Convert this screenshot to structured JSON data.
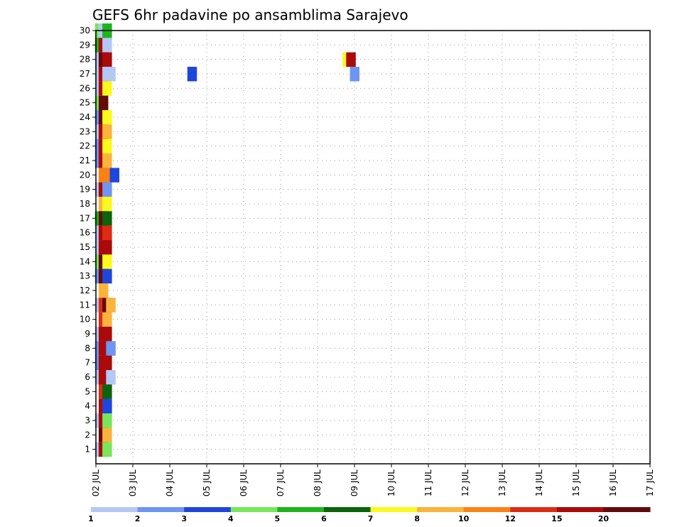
{
  "chart_data": {
    "type": "heatmap",
    "title": "GEFS 6hr padavine po ansamblima Sarajevo",
    "xlabel": "",
    "ylabel": "",
    "y_ticks": [
      1,
      2,
      3,
      4,
      5,
      6,
      7,
      8,
      9,
      10,
      11,
      12,
      13,
      14,
      15,
      16,
      17,
      18,
      19,
      20,
      21,
      22,
      23,
      24,
      25,
      26,
      27,
      28,
      29,
      30
    ],
    "y_range": [
      0,
      30
    ],
    "x_ticks": [
      "02 JUL",
      "03 JUL",
      "04 JUL",
      "05 JUL",
      "06 JUL",
      "07 JUL",
      "08 JUL",
      "09 JUL",
      "10 JUL",
      "11 JUL",
      "12 JUL",
      "13 JUL",
      "14 JUL",
      "15 JUL",
      "16 JUL",
      "17 JUL"
    ],
    "x_range_days": [
      2,
      17
    ],
    "grid": true,
    "legend": "bottom",
    "colorbar": {
      "labels": [
        "1",
        "2",
        "3",
        "4",
        "5",
        "6",
        "7",
        "8",
        "10",
        "12",
        "15",
        "20"
      ],
      "colors": [
        "#b4c8f5",
        "#6e96f0",
        "#1e46dc",
        "#78e65a",
        "#1eb41e",
        "#0a640a",
        "#fafa1e",
        "#fab43c",
        "#fa8214",
        "#dc2d14",
        "#aa0a0a",
        "#640a0a"
      ]
    },
    "cells": [
      {
        "m": 30,
        "d": [
          [
            2.1,
            3
          ],
          [
            2.2,
            0
          ],
          [
            2.3,
            4
          ]
        ]
      },
      {
        "m": 29,
        "d": [
          [
            2.1,
            4
          ],
          [
            2.2,
            10
          ],
          [
            2.3,
            0
          ]
        ]
      },
      {
        "m": 28,
        "d": [
          [
            2.1,
            0
          ],
          [
            2.2,
            11
          ],
          [
            2.3,
            10
          ],
          [
            8.8,
            6
          ],
          [
            8.9,
            10
          ]
        ]
      },
      {
        "m": 27,
        "d": [
          [
            2.1,
            0
          ],
          [
            2.2,
            10
          ],
          [
            2.3,
            0
          ],
          [
            2.4,
            0
          ],
          [
            4.6,
            2
          ],
          [
            9.0,
            1
          ]
        ]
      },
      {
        "m": 26,
        "d": [
          [
            2.1,
            0
          ],
          [
            2.2,
            10
          ],
          [
            2.3,
            6
          ]
        ]
      },
      {
        "m": 25,
        "d": [
          [
            2.1,
            3
          ],
          [
            2.2,
            11
          ]
        ]
      },
      {
        "m": 24,
        "d": [
          [
            2.1,
            1
          ],
          [
            2.2,
            11
          ],
          [
            2.3,
            6
          ]
        ]
      },
      {
        "m": 23,
        "d": [
          [
            2.1,
            0
          ],
          [
            2.2,
            10
          ],
          [
            2.3,
            7
          ]
        ]
      },
      {
        "m": 22,
        "d": [
          [
            2.1,
            1
          ],
          [
            2.2,
            10
          ],
          [
            2.3,
            6
          ]
        ]
      },
      {
        "m": 21,
        "d": [
          [
            2.1,
            1
          ],
          [
            2.2,
            10
          ],
          [
            2.3,
            7
          ]
        ]
      },
      {
        "m": 20,
        "d": [
          [
            2.2,
            8
          ],
          [
            2.3,
            8
          ],
          [
            2.5,
            2
          ]
        ]
      },
      {
        "m": 19,
        "d": [
          [
            2.1,
            0
          ],
          [
            2.2,
            10
          ],
          [
            2.3,
            1
          ]
        ]
      },
      {
        "m": 18,
        "d": [
          [
            2.2,
            7
          ],
          [
            2.3,
            6
          ]
        ]
      },
      {
        "m": 17,
        "d": [
          [
            2.1,
            4
          ],
          [
            2.2,
            11
          ],
          [
            2.3,
            5
          ]
        ]
      },
      {
        "m": 16,
        "d": [
          [
            2.1,
            0
          ],
          [
            2.2,
            10
          ],
          [
            2.3,
            9
          ]
        ]
      },
      {
        "m": 15,
        "d": [
          [
            2.1,
            0
          ],
          [
            2.2,
            10
          ],
          [
            2.3,
            10
          ]
        ]
      },
      {
        "m": 14,
        "d": [
          [
            2.1,
            3
          ],
          [
            2.2,
            11
          ],
          [
            2.3,
            6
          ]
        ]
      },
      {
        "m": 13,
        "d": [
          [
            2.1,
            1
          ],
          [
            2.2,
            11
          ],
          [
            2.3,
            2
          ]
        ]
      },
      {
        "m": 12,
        "d": [
          [
            2.2,
            7
          ]
        ]
      },
      {
        "m": 11,
        "d": [
          [
            2.1,
            0
          ],
          [
            2.2,
            9
          ],
          [
            2.3,
            11
          ],
          [
            2.4,
            7
          ]
        ]
      },
      {
        "m": 10,
        "d": [
          [
            2.2,
            9
          ],
          [
            2.3,
            7
          ]
        ]
      },
      {
        "m": 9,
        "d": [
          [
            2.1,
            0
          ],
          [
            2.2,
            10
          ],
          [
            2.3,
            10
          ]
        ]
      },
      {
        "m": 8,
        "d": [
          [
            2.1,
            1
          ],
          [
            2.2,
            10
          ],
          [
            2.3,
            10
          ],
          [
            2.4,
            1
          ]
        ]
      },
      {
        "m": 7,
        "d": [
          [
            2.1,
            1
          ],
          [
            2.2,
            10
          ],
          [
            2.3,
            10
          ]
        ]
      },
      {
        "m": 6,
        "d": [
          [
            2.1,
            0
          ],
          [
            2.2,
            10
          ],
          [
            2.3,
            10
          ],
          [
            2.4,
            0
          ]
        ]
      },
      {
        "m": 5,
        "d": [
          [
            2.2,
            9
          ],
          [
            2.3,
            5
          ]
        ]
      },
      {
        "m": 4,
        "d": [
          [
            2.2,
            10
          ],
          [
            2.3,
            2
          ]
        ]
      },
      {
        "m": 3,
        "d": [
          [
            2.1,
            0
          ],
          [
            2.2,
            10
          ],
          [
            2.3,
            3
          ]
        ]
      },
      {
        "m": 2,
        "d": [
          [
            2.2,
            11
          ],
          [
            2.3,
            7
          ]
        ]
      },
      {
        "m": 1,
        "d": [
          [
            2.1,
            0
          ],
          [
            2.2,
            10
          ],
          [
            2.3,
            3
          ]
        ]
      }
    ]
  }
}
